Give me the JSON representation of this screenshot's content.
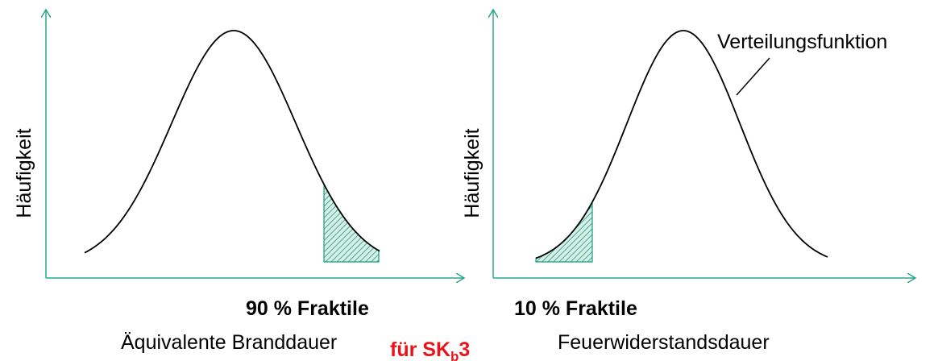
{
  "left_panel": {
    "y_label": "Häufigkeit",
    "fractile_label": "90 % Fraktile",
    "x_label": "Äquivalente Branddauer"
  },
  "right_panel": {
    "y_label": "Häufigkeit",
    "annotation": "Verteilungsfunktion",
    "fractile_label": "10 % Fraktile",
    "x_label": "Feuerwiderstandsdauer"
  },
  "center_label": {
    "text": "für SK",
    "subscript": "b",
    "suffix": "3"
  }
}
